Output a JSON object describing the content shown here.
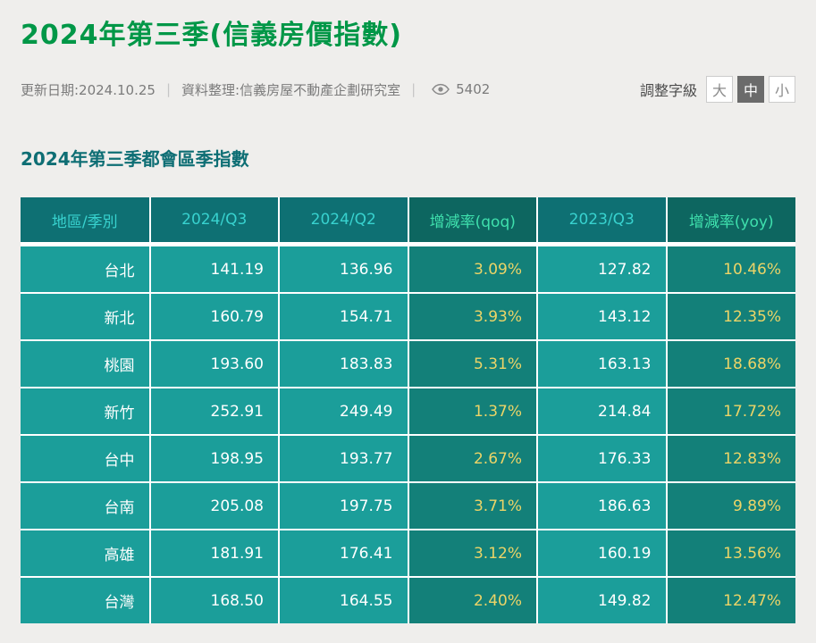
{
  "colors": {
    "page_background": "#efeeec",
    "title_green": "#009747",
    "heading_teal": "#0e6e74",
    "table_header_bg": "#0e7073",
    "table_header_rate_bg": "#0d6660",
    "table_header_text": "#38d2cf",
    "table_header_rate_text": "#3fe0ad",
    "table_cell_bg": "#1b9e9a",
    "table_rate_cell_bg": "#138079",
    "rate_text_yellow": "#ecd467",
    "cell_text_white": "#ffffff"
  },
  "header": {
    "title": "2024年第三季(信義房價指數)",
    "meta": {
      "update_date": "更新日期:2024.10.25",
      "divider": "|",
      "data_source": "資料整理:信義房屋不動產企劃研究室",
      "views_count": "5402",
      "views_icon": "eye-icon"
    },
    "font_size_control": {
      "label": "調整字級",
      "options": [
        {
          "id": "large",
          "label": "大",
          "selected": false
        },
        {
          "id": "medium",
          "label": "中",
          "selected": true
        },
        {
          "id": "small",
          "label": "小",
          "selected": false
        }
      ]
    }
  },
  "section": {
    "heading": "2024年第三季都會區季指數"
  },
  "table": {
    "columns": [
      {
        "key": "region",
        "label": "地區/季別",
        "type": "region"
      },
      {
        "key": "q3_2024",
        "label": "2024/Q3",
        "type": "value"
      },
      {
        "key": "q2_2024",
        "label": "2024/Q2",
        "type": "value"
      },
      {
        "key": "qoq",
        "label": "增減率(qoq)",
        "type": "rate"
      },
      {
        "key": "q3_2023",
        "label": "2023/Q3",
        "type": "value"
      },
      {
        "key": "yoy",
        "label": "增減率(yoy)",
        "type": "rate"
      }
    ],
    "rows": [
      {
        "region": "台北",
        "q3_2024": "141.19",
        "q2_2024": "136.96",
        "qoq": "3.09%",
        "q3_2023": "127.82",
        "yoy": "10.46%"
      },
      {
        "region": "新北",
        "q3_2024": "160.79",
        "q2_2024": "154.71",
        "qoq": "3.93%",
        "q3_2023": "143.12",
        "yoy": "12.35%"
      },
      {
        "region": "桃園",
        "q3_2024": "193.60",
        "q2_2024": "183.83",
        "qoq": "5.31%",
        "q3_2023": "163.13",
        "yoy": "18.68%"
      },
      {
        "region": "新竹",
        "q3_2024": "252.91",
        "q2_2024": "249.49",
        "qoq": "1.37%",
        "q3_2023": "214.84",
        "yoy": "17.72%"
      },
      {
        "region": "台中",
        "q3_2024": "198.95",
        "q2_2024": "193.77",
        "qoq": "2.67%",
        "q3_2023": "176.33",
        "yoy": "12.83%"
      },
      {
        "region": "台南",
        "q3_2024": "205.08",
        "q2_2024": "197.75",
        "qoq": "3.71%",
        "q3_2023": "186.63",
        "yoy": "9.89%"
      },
      {
        "region": "高雄",
        "q3_2024": "181.91",
        "q2_2024": "176.41",
        "qoq": "3.12%",
        "q3_2023": "160.19",
        "yoy": "13.56%"
      },
      {
        "region": "台灣",
        "q3_2024": "168.50",
        "q2_2024": "164.55",
        "qoq": "2.40%",
        "q3_2023": "149.82",
        "yoy": "12.47%"
      }
    ]
  }
}
